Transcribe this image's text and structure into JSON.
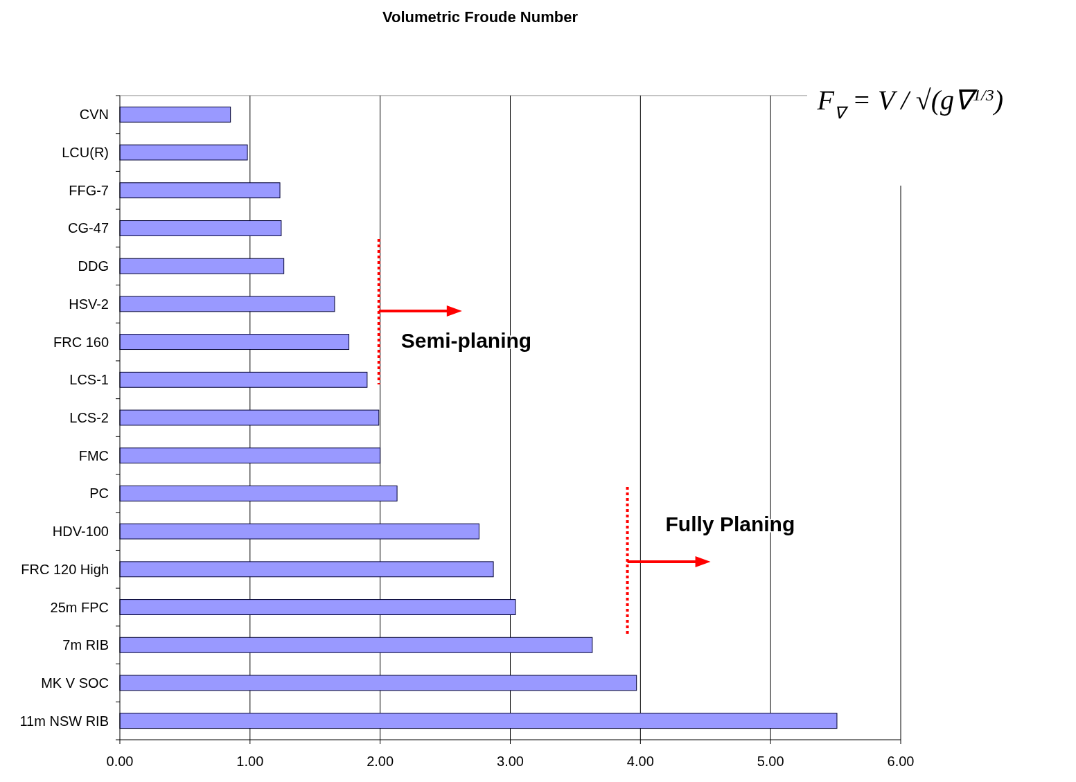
{
  "chart_data": {
    "type": "bar",
    "title": "Volumetric Froude Number",
    "orientation": "horizontal",
    "categories": [
      "CVN",
      "LCU(R)",
      "FFG-7",
      "CG-47",
      "DDG",
      "HSV-2",
      "FRC 160",
      "LCS-1",
      "LCS-2",
      "FMC",
      "PC",
      "HDV-100",
      "FRC 120 High",
      "25m FPC",
      "7m RIB",
      "MK V SOC",
      "11m NSW RIB"
    ],
    "values": [
      0.85,
      0.98,
      1.23,
      1.24,
      1.26,
      1.65,
      1.76,
      1.9,
      1.99,
      2.0,
      2.13,
      2.76,
      2.87,
      3.04,
      3.63,
      3.97,
      5.51
    ],
    "color": "#9999ff",
    "xlim": [
      0,
      6
    ],
    "xticks": [
      {
        "value": 0,
        "label": "0.00"
      },
      {
        "value": 1,
        "label": "1.00"
      },
      {
        "value": 2,
        "label": "2.00"
      },
      {
        "value": 3,
        "label": "3.00"
      },
      {
        "value": 4,
        "label": "4.00"
      },
      {
        "value": 5,
        "label": "5.00"
      },
      {
        "value": 6,
        "label": "6.00"
      }
    ],
    "grid": "x",
    "ref_lines": [
      {
        "axis": "x",
        "value": 1.99,
        "label": "Semi-planing",
        "color": "#ff0000",
        "line_style": "dotted"
      },
      {
        "axis": "x",
        "value": 3.9,
        "label": "Fully Planing",
        "color": "#ff0000",
        "line_style": "dotted"
      }
    ],
    "annotations": [
      "F$_{∇}$ = V / √(g∇$^{1/3}$)"
    ]
  }
}
